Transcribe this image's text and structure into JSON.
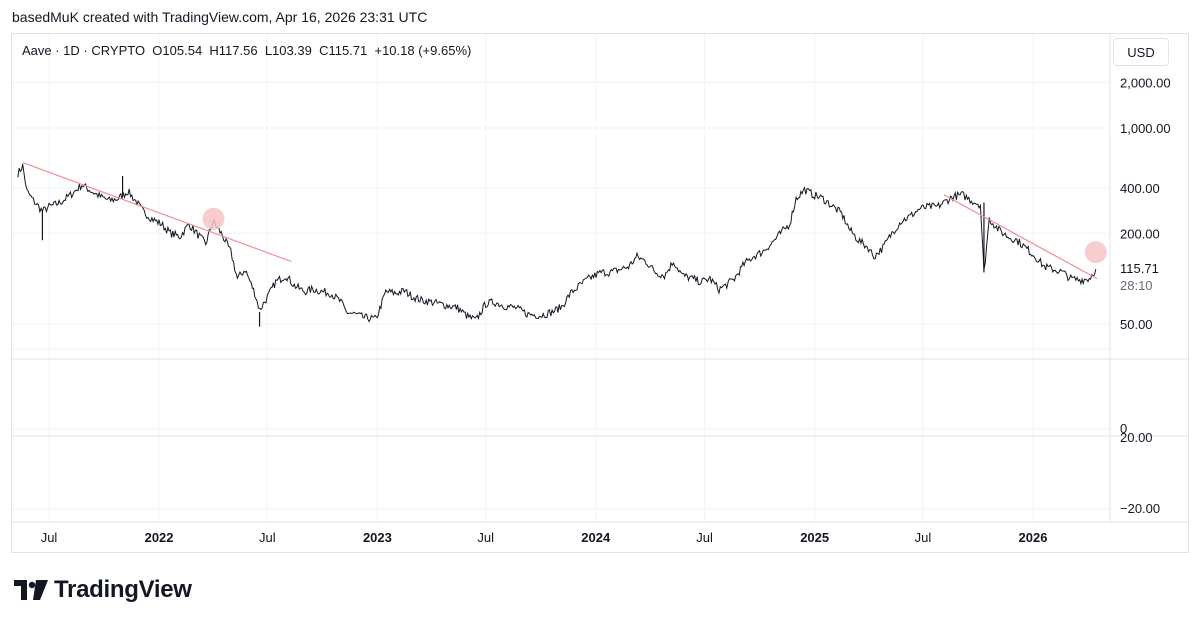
{
  "header": {
    "text": "basedMuK created with TradingView.com, Apr 16, 2026 23:31 UTC"
  },
  "legend": {
    "symbol": "Aave · 1D · CRYPTO",
    "open": "O105.54",
    "high": "H117.56",
    "low": "L103.39",
    "close": "C115.71",
    "change": "+10.18 (+9.65%)"
  },
  "currency": "USD",
  "brand": {
    "name": "TradingView"
  },
  "chart_data": {
    "type": "line",
    "symbol": "Aave",
    "interval": "1D",
    "exchange": "CRYPTO",
    "price_axis": {
      "scale": "log",
      "labels": [
        "2,000.00",
        "1,000.00",
        "400.00",
        "200.00",
        "50.00"
      ],
      "values": [
        2000,
        1000,
        400,
        200,
        50
      ],
      "last_price": {
        "label": "115.71",
        "value": 115.71,
        "countdown": "28:10"
      }
    },
    "oscillator_axis": {
      "labels": [
        "20.00",
        "0",
        "−20.00"
      ],
      "values": [
        20,
        0,
        -20
      ]
    },
    "time_axis": {
      "labels": [
        "Jul",
        "2022",
        "Jul",
        "2023",
        "Jul",
        "2024",
        "Jul",
        "2025",
        "Jul",
        "2026"
      ],
      "dates": [
        "2021-07-01",
        "2022-01-01",
        "2022-07-01",
        "2023-01-01",
        "2023-07-01",
        "2024-01-01",
        "2024-07-01",
        "2025-01-01",
        "2025-07-01",
        "2026-01-01"
      ]
    },
    "series": [
      {
        "x": [
          "2021-05-10",
          "2021-05-18",
          "2021-05-25",
          "2021-06-05",
          "2021-06-20",
          "2021-07-01",
          "2021-07-20",
          "2021-08-10",
          "2021-08-25",
          "2021-09-10",
          "2021-09-25",
          "2021-10-10",
          "2021-10-25",
          "2021-11-10",
          "2021-11-25",
          "2021-12-05",
          "2021-12-20",
          "2022-01-05",
          "2022-01-20",
          "2022-02-05",
          "2022-02-20",
          "2022-03-05",
          "2022-03-20",
          "2022-04-01",
          "2022-04-15",
          "2022-05-01",
          "2022-05-12",
          "2022-05-25",
          "2022-06-10",
          "2022-06-18",
          "2022-07-01",
          "2022-07-15",
          "2022-08-01",
          "2022-08-15",
          "2022-09-01",
          "2022-09-15",
          "2022-10-01",
          "2022-10-15",
          "2022-11-01",
          "2022-11-10",
          "2022-11-25",
          "2022-12-10",
          "2022-12-30",
          "2023-01-15",
          "2023-02-01",
          "2023-02-15",
          "2023-03-01",
          "2023-03-15",
          "2023-04-01",
          "2023-04-15",
          "2023-05-01",
          "2023-05-15",
          "2023-06-01",
          "2023-06-15",
          "2023-07-01",
          "2023-07-15",
          "2023-08-01",
          "2023-08-20",
          "2023-09-10",
          "2023-10-01",
          "2023-10-20",
          "2023-11-05",
          "2023-11-20",
          "2023-12-05",
          "2023-12-20",
          "2024-01-10",
          "2024-01-25",
          "2024-02-10",
          "2024-02-25",
          "2024-03-10",
          "2024-03-25",
          "2024-04-10",
          "2024-04-25",
          "2024-05-10",
          "2024-05-25",
          "2024-06-10",
          "2024-06-25",
          "2024-07-10",
          "2024-07-25",
          "2024-08-05",
          "2024-08-20",
          "2024-09-05",
          "2024-09-20",
          "2024-10-05",
          "2024-10-20",
          "2024-11-05",
          "2024-11-20",
          "2024-12-01",
          "2024-12-15",
          "2024-12-30",
          "2025-01-15",
          "2025-02-01",
          "2025-02-15",
          "2025-03-01",
          "2025-03-15",
          "2025-04-01",
          "2025-04-10",
          "2025-04-25",
          "2025-05-10",
          "2025-05-25",
          "2025-06-10",
          "2025-06-25",
          "2025-07-10",
          "2025-07-25",
          "2025-08-10",
          "2025-08-20",
          "2025-09-05",
          "2025-09-20",
          "2025-10-05",
          "2025-10-11",
          "2025-10-20",
          "2025-11-05",
          "2025-11-20",
          "2025-12-05",
          "2025-12-20",
          "2026-01-05",
          "2026-01-20",
          "2026-02-05",
          "2026-02-20",
          "2026-03-05",
          "2026-03-20",
          "2026-04-05",
          "2026-04-16"
        ],
        "y": [
          500,
          560,
          380,
          330,
          280,
          300,
          320,
          370,
          420,
          380,
          350,
          330,
          340,
          380,
          320,
          280,
          250,
          230,
          200,
          190,
          230,
          200,
          170,
          240,
          200,
          150,
          100,
          115,
          80,
          62,
          75,
          95,
          105,
          90,
          82,
          85,
          82,
          80,
          70,
          60,
          58,
          55,
          54,
          82,
          80,
          83,
          76,
          72,
          70,
          68,
          66,
          64,
          56,
          53,
          68,
          70,
          66,
          64,
          58,
          57,
          60,
          65,
          80,
          90,
          100,
          110,
          110,
          115,
          120,
          140,
          130,
          110,
          105,
          130,
          105,
          100,
          95,
          100,
          85,
          90,
          100,
          125,
          140,
          150,
          170,
          200,
          230,
          340,
          390,
          360,
          340,
          300,
          270,
          210,
          180,
          160,
          140,
          160,
          200,
          240,
          260,
          290,
          300,
          300,
          330,
          350,
          360,
          330,
          310,
          110,
          250,
          210,
          190,
          180,
          160,
          140,
          120,
          115,
          110,
          100,
          98,
          100,
          115.71
        ]
      }
    ],
    "trendlines": [
      {
        "from": {
          "x": "2021-05-18",
          "y": 590
        },
        "to": {
          "x": "2022-08-10",
          "y": 130
        }
      },
      {
        "from": {
          "x": "2025-08-05",
          "y": 360
        },
        "to": {
          "x": "2026-04-18",
          "y": 100
        }
      }
    ],
    "markers": [
      {
        "x": "2022-04-02",
        "y": 250
      },
      {
        "x": "2026-04-16",
        "y": 150
      }
    ],
    "grid": true,
    "colors": {
      "line": "#131722",
      "trendline": "#ef8f93",
      "marker": "#f6c4c6",
      "grid": "#f0f3fa",
      "last_price_label": "#131722"
    }
  }
}
